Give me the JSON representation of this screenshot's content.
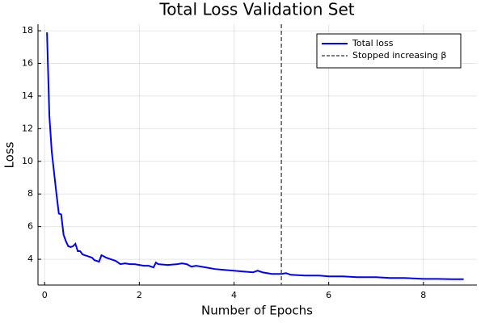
{
  "chart_data": {
    "type": "line",
    "title": "Total Loss Validation Set",
    "x_label": "Number of Epochs",
    "y_label": "Loss",
    "x": [
      0.05,
      0.1,
      0.15,
      0.2,
      0.25,
      0.3,
      0.35,
      0.4,
      0.45,
      0.5,
      0.55,
      0.6,
      0.65,
      0.7,
      0.75,
      0.8,
      0.85,
      0.9,
      1.0,
      1.05,
      1.15,
      1.2,
      1.3,
      1.4,
      1.5,
      1.6,
      1.7,
      1.8,
      1.9,
      2.0,
      2.1,
      2.2,
      2.3,
      2.35,
      2.4,
      2.6,
      2.8,
      2.9,
      3.0,
      3.1,
      3.2,
      3.4,
      3.6,
      3.8,
      4.0,
      4.2,
      4.4,
      4.5,
      4.6,
      4.8,
      5.0,
      5.1,
      5.2,
      5.5,
      5.8,
      6.0,
      6.3,
      6.6,
      7.0,
      7.3,
      7.6,
      8.0,
      8.3,
      8.6,
      8.85
    ],
    "series": [
      {
        "name": "Total loss",
        "color": "#0000ff",
        "values": [
          17.9,
          12.8,
          10.6,
          9.3,
          8.0,
          6.8,
          6.75,
          5.5,
          5.1,
          4.8,
          4.75,
          4.8,
          4.95,
          4.5,
          4.5,
          4.3,
          4.25,
          4.2,
          4.1,
          3.95,
          3.85,
          4.25,
          4.1,
          4.0,
          3.9,
          3.7,
          3.75,
          3.7,
          3.7,
          3.65,
          3.6,
          3.6,
          3.5,
          3.8,
          3.7,
          3.65,
          3.7,
          3.75,
          3.7,
          3.55,
          3.6,
          3.5,
          3.4,
          3.35,
          3.3,
          3.25,
          3.2,
          3.3,
          3.2,
          3.1,
          3.1,
          3.15,
          3.05,
          3.0,
          3.0,
          2.95,
          2.95,
          2.9,
          2.9,
          2.85,
          2.85,
          2.8,
          2.8,
          2.78,
          2.78
        ]
      }
    ],
    "vlines": [
      {
        "name": "Stopped increasing β",
        "x": 5,
        "color": "#555555",
        "style": "dashed"
      }
    ],
    "xlim": [
      -0.14,
      9.13
    ],
    "ylim": [
      2.42,
      18.4
    ],
    "xticks": [
      0,
      2,
      4,
      6,
      8
    ],
    "yticks": [
      4,
      6,
      8,
      10,
      12,
      14,
      16,
      18
    ],
    "grid": true,
    "legend_position": "top-right"
  }
}
